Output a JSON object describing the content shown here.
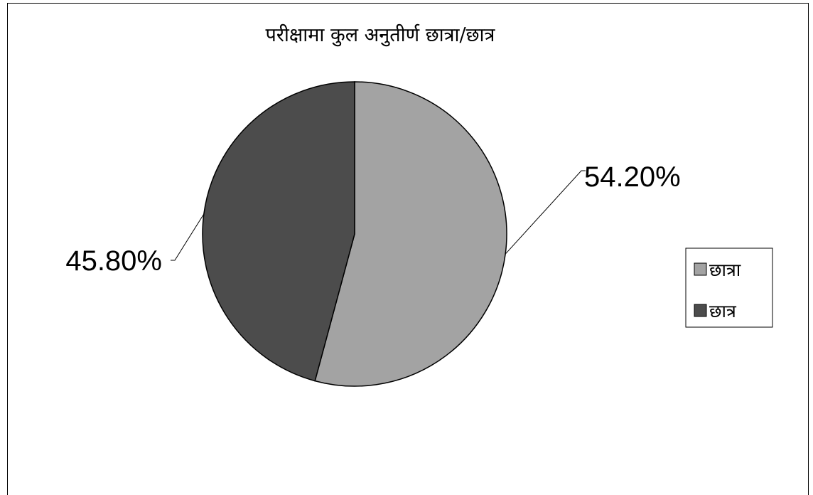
{
  "chart_data": {
    "type": "pie",
    "title": "परीक्षामा कुल अनुतीर्ण छात्रा/छात्र",
    "categories": [
      "छात्रा",
      "छात्र"
    ],
    "values": [
      54.2,
      45.8
    ],
    "data_labels": [
      "54.20%",
      "45.80%"
    ],
    "colors": [
      "#a3a3a3",
      "#4c4c4c"
    ],
    "legend_position": "right",
    "start_angle": "12 o'clock",
    "direction": "clockwise"
  }
}
